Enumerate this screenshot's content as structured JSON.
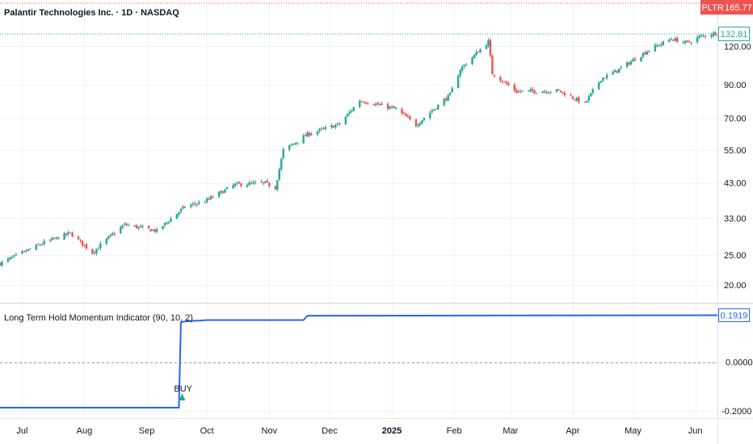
{
  "header": {
    "title": "Palantir Technologies Inc. · 1D · NASDAQ"
  },
  "price_badges": {
    "symbol": "PLTR",
    "symbol_price": "165.77",
    "last_close": "132.81",
    "indicator_value": "0.1919"
  },
  "colors": {
    "up": "#26a69a",
    "down": "#ef5350",
    "indicator_line": "#2962ff",
    "buy_marker": "#26a69a",
    "grid": "#f0f3fa"
  },
  "chart_data": [
    {
      "type": "candlestick",
      "title": "Palantir Technologies Inc. · 1D · NASDAQ",
      "y_scale": "log",
      "ylim": [
        17.5,
        170
      ],
      "y_ticks": [
        "120.00",
        "90.00",
        "70.00",
        "55.00",
        "43.00",
        "33.00",
        "25.00",
        "20.00"
      ],
      "y_tick_values": [
        120,
        90,
        70,
        55,
        43,
        33,
        25,
        20
      ],
      "x_ticks": [
        "Jul",
        "Aug",
        "Sep",
        "Oct",
        "Nov",
        "Dec",
        "2025",
        "Feb",
        "Mar",
        "Apr",
        "May",
        "Jun"
      ],
      "x_tick_dates": [
        "2024-07-01",
        "2024-08-01",
        "2024-09-01",
        "2024-10-01",
        "2024-11-01",
        "2024-12-01",
        "2025-01-01",
        "2025-02-01",
        "2025-03-01",
        "2025-04-01",
        "2025-05-01",
        "2025-06-01"
      ],
      "xlim": [
        "2024-06-20",
        "2025-06-12"
      ],
      "path_dates": [
        "2024-06-20",
        "2024-07-12",
        "2024-07-25",
        "2024-08-05",
        "2024-08-13",
        "2024-08-21",
        "2024-09-06",
        "2024-09-20",
        "2024-09-30",
        "2024-10-15",
        "2024-10-30",
        "2024-11-04",
        "2024-11-08",
        "2024-11-20",
        "2024-12-06",
        "2024-12-16",
        "2025-01-03",
        "2025-01-13",
        "2025-01-30",
        "2025-02-04",
        "2025-02-18",
        "2025-02-20",
        "2025-03-04",
        "2025-03-25",
        "2025-04-07",
        "2025-04-15",
        "2025-04-23",
        "2025-05-09",
        "2025-05-20",
        "2025-05-28",
        "2025-06-03",
        "2025-06-12"
      ],
      "path_closes": [
        23.5,
        27.5,
        29.5,
        25.5,
        28.5,
        31.5,
        30.0,
        36.0,
        37.5,
        42.5,
        43.0,
        41.5,
        55.0,
        62.0,
        67.0,
        80.0,
        75.0,
        66.5,
        83.5,
        101.0,
        124.5,
        98.0,
        85.5,
        86.0,
        78.0,
        94.0,
        100.0,
        117.0,
        127.0,
        123.0,
        129.0,
        133.0
      ],
      "last_close": 132.81
    },
    {
      "type": "line",
      "title": "Long Term Hold Momentum Indicator (90, 10, 2)",
      "ylim": [
        -0.23,
        0.24
      ],
      "y_ticks": [
        "0.0000",
        "-0.2000"
      ],
      "y_tick_values": [
        0.0,
        -0.2
      ],
      "dates": [
        "2024-06-20",
        "2024-09-17",
        "2024-09-18",
        "2024-09-20",
        "2024-10-01",
        "2024-11-18",
        "2024-11-20",
        "2025-06-12"
      ],
      "values": [
        -0.187,
        -0.187,
        0.163,
        0.167,
        0.172,
        0.172,
        0.19,
        0.1919
      ],
      "zero_line": 0.0,
      "annotations": [
        {
          "label": "BUY",
          "date": "2024-09-17",
          "value": -0.187
        }
      ]
    }
  ]
}
